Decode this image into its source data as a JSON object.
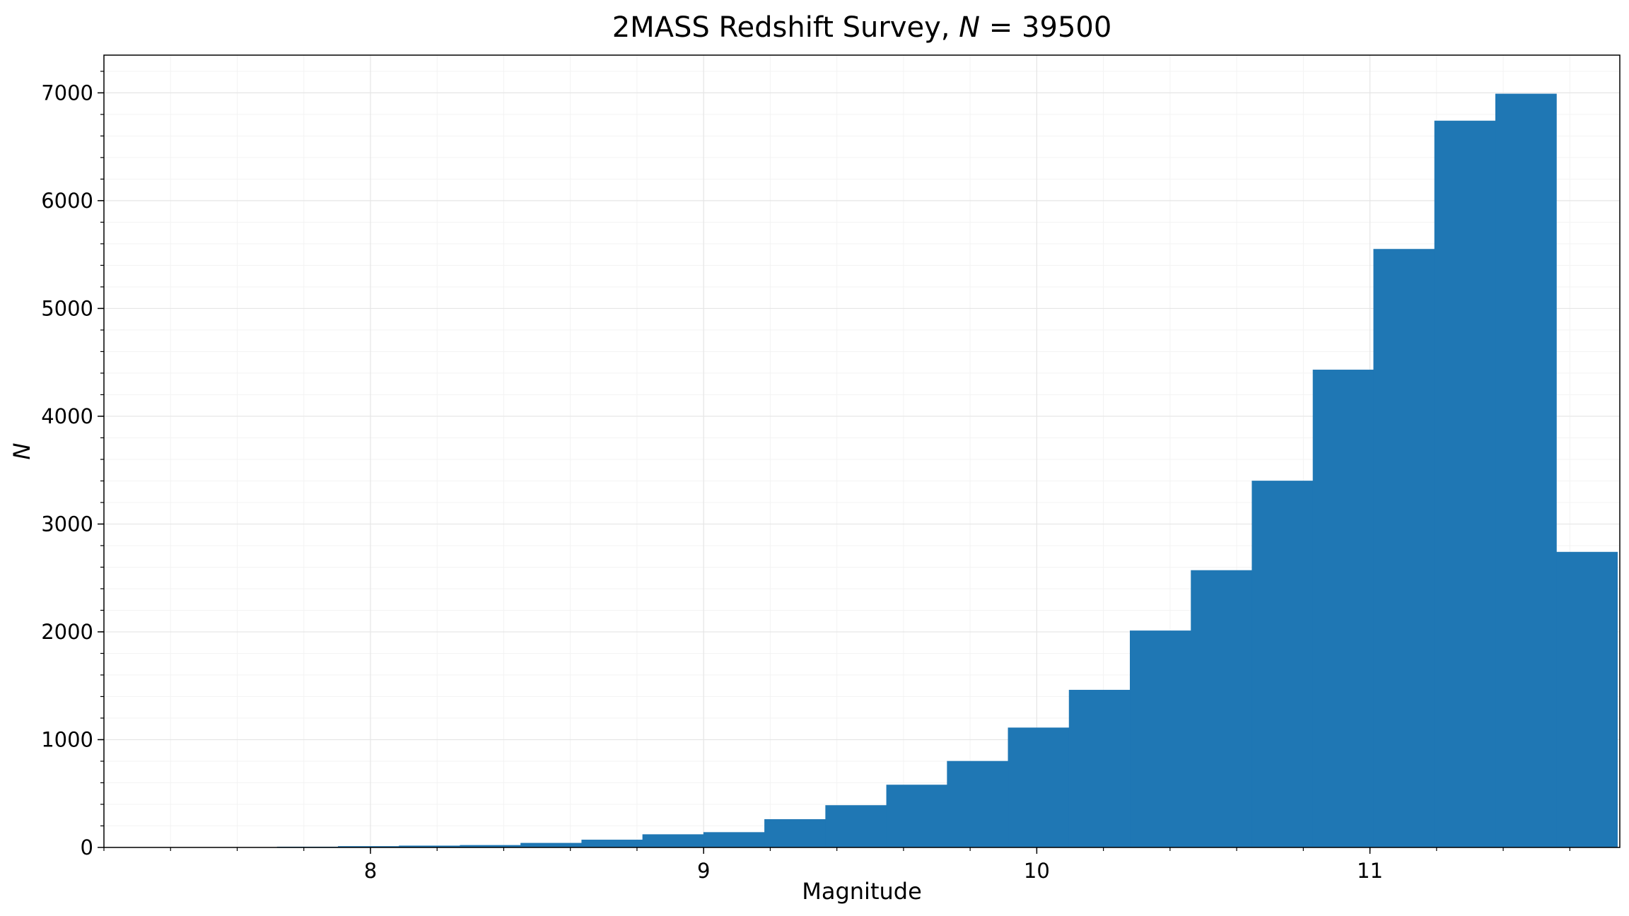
{
  "chart_data": {
    "type": "bar",
    "subtype": "histogram",
    "title_prefix": "2MASS Redshift Survey, ",
    "title_var": "N",
    "title_eq": " = 39500",
    "xlabel": "Magnitude",
    "ylabel": "N",
    "xlim": [
      7.2,
      11.75
    ],
    "ylim": [
      0,
      7350
    ],
    "xticks": [
      8,
      9,
      10,
      11
    ],
    "yticks": [
      0,
      1000,
      2000,
      3000,
      4000,
      5000,
      6000,
      7000
    ],
    "grid": true,
    "bar_color": "#1f77b4",
    "bin_edges": [
      7.72,
      7.903,
      8.086,
      8.269,
      8.451,
      8.634,
      8.817,
      9.0,
      9.183,
      9.366,
      9.549,
      9.731,
      9.914,
      10.097,
      10.28,
      10.463,
      10.646,
      10.829,
      11.011,
      11.194,
      11.377,
      11.56,
      11.743
    ],
    "counts": [
      5,
      10,
      15,
      20,
      40,
      70,
      120,
      140,
      260,
      390,
      580,
      800,
      1110,
      1460,
      2010,
      2570,
      3400,
      4430,
      5550,
      6740,
      6990,
      2740
    ]
  }
}
